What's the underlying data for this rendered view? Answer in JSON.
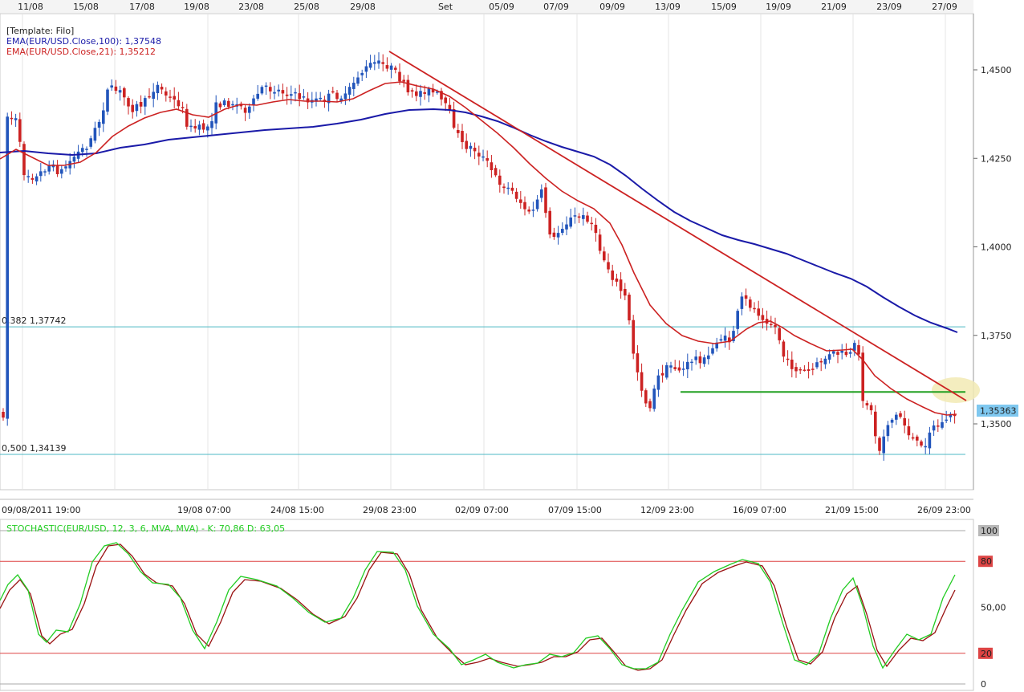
{
  "colors": {
    "ema100": "#1a1aa8",
    "ema21": "#cc2222",
    "bull": "#2255bb",
    "bear": "#cc2222",
    "trendline": "#cc2222",
    "support": "#22a022",
    "fib": "#4cb8c4",
    "stoch_k": "#22cc22",
    "stoch_d": "#991111",
    "stoch_level": "#dd4444",
    "last_price_bg": "#7fc8f0",
    "highlight": "#f2eab4"
  },
  "header": {
    "template": "[Template: Filo]",
    "ema100_label": "EMA(EUR/USD.Close,100): 1,37548",
    "ema21_label": "EMA(EUR/USD.Close,21): 1,35212"
  },
  "top_axis": [
    "11/08",
    "15/08",
    "17/08",
    "19/08",
    "23/08",
    "25/08",
    "29/08",
    "Set",
    "05/09",
    "07/09",
    "09/09",
    "13/09",
    "15/09",
    "19/09",
    "21/09",
    "23/09",
    "27/09"
  ],
  "bottom_axis": [
    "09/08/2011 19:00",
    "19/08 07:00",
    "24/08 15:00",
    "29/08 23:00",
    "02/09 07:00",
    "07/09 15:00",
    "12/09 23:00",
    "16/09 07:00",
    "21/09 15:00",
    "26/09 23:00"
  ],
  "price_axis": [
    "1,4500",
    "1,4250",
    "1,4000",
    "1,3750",
    "1,3500"
  ],
  "last_price": "1,35363",
  "fib_levels": [
    {
      "label": "0,382 1,37742",
      "value": 1.37742
    },
    {
      "label": "0,500 1,34139",
      "value": 1.34139
    }
  ],
  "support_level": 1.359,
  "stoch": {
    "label": "STOCHASTIC(EUR/USD, 12, 3, 6, MVA, MVA) -  K: 70,86  D: 63,05",
    "axis": [
      {
        "label": "100",
        "value": 100
      },
      {
        "label": "80",
        "value": 80
      },
      {
        "label": "50,00",
        "value": 50
      },
      {
        "label": "20",
        "value": 20
      },
      {
        "label": "0",
        "value": 0
      }
    ],
    "levels": [
      80,
      20
    ]
  },
  "chart_data": {
    "type": "candlestick",
    "title": "",
    "ylim": [
      1.332,
      1.4655
    ],
    "ema21": {
      "name": "EMA(EUR/USD.Close,21)",
      "last": 1.35212
    },
    "ema100": {
      "name": "EMA(EUR/USD.Close,100)",
      "last": 1.37548
    },
    "stochastic": {
      "K": 70.86,
      "D": 63.05,
      "ylim": [
        0,
        100
      ]
    }
  }
}
